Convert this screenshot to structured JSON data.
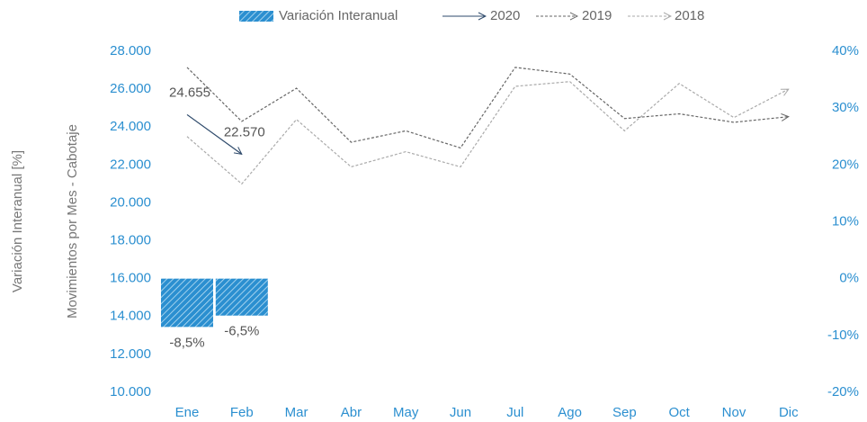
{
  "chart_data": {
    "type": "line",
    "categories": [
      "Ene",
      "Feb",
      "Mar",
      "Abr",
      "May",
      "Jun",
      "Jul",
      "Ago",
      "Sep",
      "Oct",
      "Nov",
      "Dic"
    ],
    "ylabel": "Movimientos por Mes - Cabotaje",
    "y2label": "Variación Interanual [%]",
    "ylim": [
      10000,
      28000
    ],
    "yticks": [
      {
        "value": 10000,
        "label": "10.000"
      },
      {
        "value": 12000,
        "label": "12.000"
      },
      {
        "value": 14000,
        "label": "14.000"
      },
      {
        "value": 16000,
        "label": "16.000"
      },
      {
        "value": 18000,
        "label": "18.000"
      },
      {
        "value": 20000,
        "label": "20.000"
      },
      {
        "value": 22000,
        "label": "22.000"
      },
      {
        "value": 24000,
        "label": "24.000"
      },
      {
        "value": 26000,
        "label": "26.000"
      },
      {
        "value": 28000,
        "label": "28.000"
      }
    ],
    "y2lim": [
      -20,
      40
    ],
    "y2ticks": [
      {
        "value": -20,
        "label": "-20%"
      },
      {
        "value": -10,
        "label": "-10%"
      },
      {
        "value": 0,
        "label": "0%"
      },
      {
        "value": 10,
        "label": "10%"
      },
      {
        "value": 20,
        "label": "20%"
      },
      {
        "value": 30,
        "label": "30%"
      },
      {
        "value": 40,
        "label": "40%"
      }
    ],
    "legend": "top",
    "series": [
      {
        "name": "Variación Interanual",
        "type": "bar",
        "axis": "y2",
        "color": "#2b8fd0",
        "values": [
          -8.5,
          -6.5,
          null,
          null,
          null,
          null,
          null,
          null,
          null,
          null,
          null,
          null
        ],
        "value_labels": [
          "-8,5%",
          "-6,5%",
          null,
          null,
          null,
          null,
          null,
          null,
          null,
          null,
          null,
          null
        ]
      },
      {
        "name": "2020",
        "type": "line",
        "color": "#2e4a6b",
        "dash": false,
        "values": [
          24655,
          22570,
          null,
          null,
          null,
          null,
          null,
          null,
          null,
          null,
          null,
          null
        ],
        "value_labels": [
          "24.655",
          "22.570",
          null,
          null,
          null,
          null,
          null,
          null,
          null,
          null,
          null,
          null
        ]
      },
      {
        "name": "2019",
        "type": "line",
        "color": "#666666",
        "dash": true,
        "values": [
          27150,
          24300,
          26050,
          23200,
          23800,
          22900,
          27150,
          26800,
          24450,
          24700,
          24250,
          24550
        ]
      },
      {
        "name": "2018",
        "type": "line",
        "color": "#aaaaaa",
        "dash": true,
        "values": [
          23500,
          21000,
          24400,
          21900,
          22700,
          21900,
          26150,
          26400,
          23800,
          26300,
          24500,
          26000
        ]
      }
    ]
  }
}
